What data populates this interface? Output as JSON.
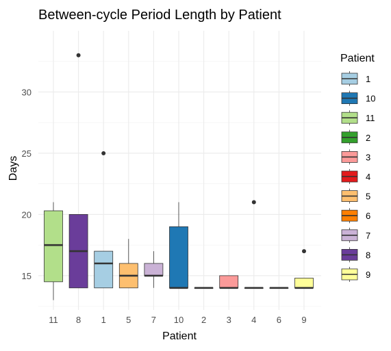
{
  "chart_data": {
    "type": "boxplot",
    "title": "Between-cycle Period Length by Patient",
    "xlabel": "Patient",
    "ylabel": "Days",
    "ylim": [
      12.2,
      35.0
    ],
    "yticks": [
      15,
      20,
      25,
      30
    ],
    "grid": true,
    "legend": {
      "title": "Patient",
      "position": "right"
    },
    "categories": [
      "11",
      "8",
      "1",
      "5",
      "7",
      "10",
      "2",
      "3",
      "4",
      "6",
      "9"
    ],
    "boxes": [
      {
        "patient": "11",
        "min": 13,
        "q1": 14.5,
        "median": 17.5,
        "q3": 20.3,
        "max": 21,
        "outliers": []
      },
      {
        "patient": "8",
        "min": 14,
        "q1": 14,
        "median": 17,
        "q3": 20,
        "max": 20,
        "outliers": [
          33
        ]
      },
      {
        "patient": "1",
        "min": 14,
        "q1": 14,
        "median": 16,
        "q3": 17,
        "max": 17,
        "outliers": [
          25
        ]
      },
      {
        "patient": "5",
        "min": 14,
        "q1": 14,
        "median": 15,
        "q3": 16,
        "max": 18,
        "outliers": []
      },
      {
        "patient": "7",
        "min": 14,
        "q1": 15,
        "median": 15,
        "q3": 16,
        "max": 17,
        "outliers": []
      },
      {
        "patient": "10",
        "min": 14,
        "q1": 14,
        "median": 14,
        "q3": 19,
        "max": 21,
        "outliers": []
      },
      {
        "patient": "2",
        "min": 14,
        "q1": 14,
        "median": 14,
        "q3": 14,
        "max": 14,
        "outliers": []
      },
      {
        "patient": "3",
        "min": 14,
        "q1": 14,
        "median": 14,
        "q3": 15,
        "max": 15,
        "outliers": []
      },
      {
        "patient": "4",
        "min": 14,
        "q1": 14,
        "median": 14,
        "q3": 14,
        "max": 14,
        "outliers": [
          21
        ]
      },
      {
        "patient": "6",
        "min": 14,
        "q1": 14,
        "median": 14,
        "q3": 14,
        "max": 14,
        "outliers": []
      },
      {
        "patient": "9",
        "min": 14,
        "q1": 14,
        "median": 14,
        "q3": 14.8,
        "max": 14.8,
        "outliers": [
          17
        ]
      }
    ],
    "legend_order": [
      "1",
      "10",
      "11",
      "2",
      "3",
      "4",
      "5",
      "6",
      "7",
      "8",
      "9"
    ],
    "colors": {
      "1": "#a6cee3",
      "10": "#1f78b4",
      "11": "#b2df8a",
      "2": "#33a02c",
      "3": "#fb9a99",
      "4": "#e31a1c",
      "5": "#fdbf6f",
      "6": "#ff7f00",
      "7": "#cab2d6",
      "8": "#6a3d9a",
      "9": "#ffff99"
    }
  }
}
